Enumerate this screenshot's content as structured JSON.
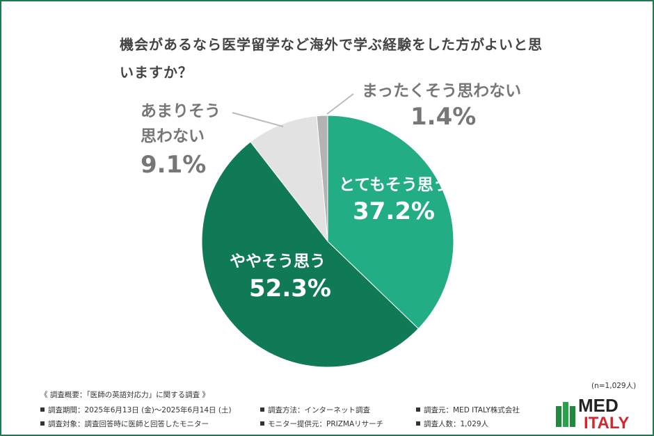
{
  "chart_data": {
    "type": "pie",
    "title": "機会があるなら医学留学など海外で学ぶ経験をした方がよいと思いますか？",
    "categories": [
      "とてもそう思う",
      "ややそう思う",
      "あまりそう思わない",
      "まったくそう思わない"
    ],
    "values": [
      37.2,
      52.3,
      9.1,
      1.4
    ],
    "value_labels": [
      "37.2%",
      "52.3%",
      "9.1%",
      "1.4%"
    ],
    "colors": [
      "#23ad84",
      "#0f7a55",
      "#e2e2e2",
      "#b3b3b3"
    ],
    "note": "(n=1,029人)"
  },
  "footer": {
    "heading": "《 調査概要：「医師の英語対応力」に関する調査 》",
    "items": [
      "調査期間：2025年6月13日 (金)〜2025年6月14日 (土)",
      "調査方法：インターネット調査",
      "調査元：MED ITALY株式会社",
      "調査対象：調査回答時に医師と回答したモニター",
      "モニター提供元：PRIZMAリサーチ",
      "調査人数：1,029人"
    ]
  },
  "logo": {
    "line1": "MED",
    "line2": "ITALY"
  }
}
